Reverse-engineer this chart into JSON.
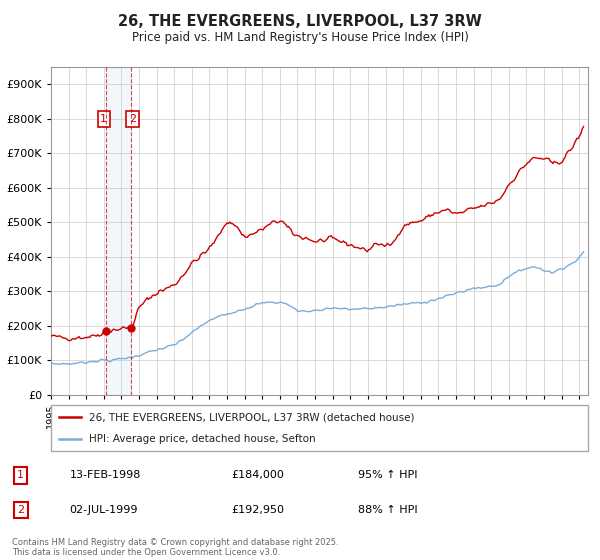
{
  "title": "26, THE EVERGREENS, LIVERPOOL, L37 3RW",
  "subtitle": "Price paid vs. HM Land Registry's House Price Index (HPI)",
  "sale1_date": "13-FEB-1998",
  "sale1_price": 184000,
  "sale1_hpi": "95% ↑ HPI",
  "sale2_date": "02-JUL-1999",
  "sale2_price": 192950,
  "sale2_hpi": "88% ↑ HPI",
  "legend1": "26, THE EVERGREENS, LIVERPOOL, L37 3RW (detached house)",
  "legend2": "HPI: Average price, detached house, Sefton",
  "footer": "Contains HM Land Registry data © Crown copyright and database right 2025.\nThis data is licensed under the Open Government Licence v3.0.",
  "red_color": "#cc0000",
  "blue_color": "#7aaddc",
  "ylim": [
    0,
    950000
  ],
  "yticks": [
    0,
    100000,
    200000,
    300000,
    400000,
    500000,
    600000,
    700000,
    800000,
    900000
  ],
  "xlim_start": 1995,
  "xlim_end": 2025.5,
  "background": "#ffffff",
  "grid_color": "#cccccc",
  "sale1_x": 1998.12,
  "sale2_x": 1999.54
}
